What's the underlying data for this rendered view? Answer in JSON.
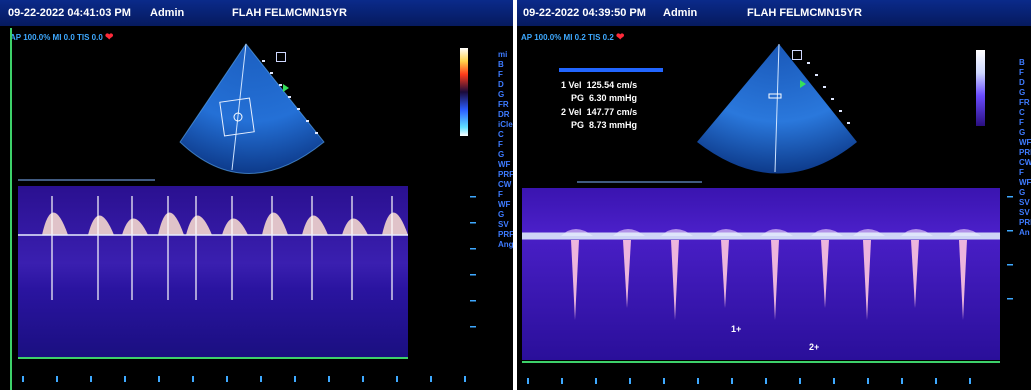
{
  "left_screen": {
    "datetime": "09-22-2022 04:41:03 PM",
    "operator": "Admin",
    "patient_id": "FLAH FELMCMN15YR",
    "params_line": "AP 100.0%  MI 0.0  TIS 0.0",
    "side_letters": [
      "mi",
      "B",
      "F",
      "D",
      "G",
      "FR",
      "DR",
      "iCle",
      "C",
      "F",
      "G",
      "WF",
      "PRF",
      "CW",
      "F",
      "WF",
      "G",
      "SV",
      "PRF",
      "Ang"
    ]
  },
  "right_screen": {
    "datetime": "09-22-2022 04:39:50 PM",
    "operator": "Admin",
    "patient_id": "FLAH FELMCMN15YR",
    "params_line": "AP 100.0%  MI 0.2  TIS 0.2",
    "measurements": [
      {
        "index": "1",
        "label_vel": "Vel",
        "vel": "125.54 cm/s",
        "label_pg": "PG",
        "pg": "6.30 mmHg"
      },
      {
        "index": "2",
        "label_vel": "Vel",
        "vel": "147.77 cm/s",
        "label_pg": "PG",
        "pg": "8.73 mmHg"
      }
    ],
    "calipers": [
      "1",
      "2"
    ]
  },
  "colors": {
    "header_bg": "#0a2a8a",
    "param_text": "#3ea9ff",
    "doppler_bg": "#1a0f8a",
    "baseline": "#3dd16a",
    "heart": "#ff2a3a"
  }
}
